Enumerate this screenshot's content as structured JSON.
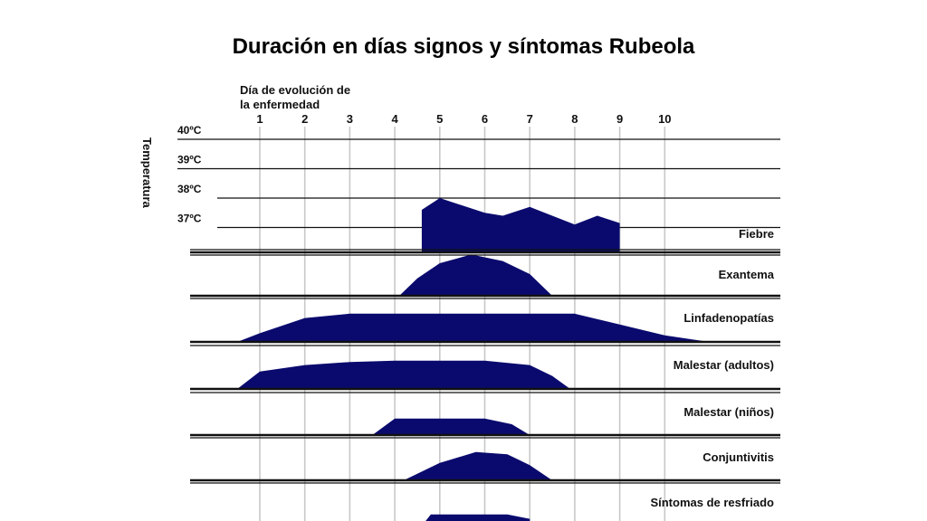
{
  "slide_title": "Duración en días signos y síntomas Rubeola",
  "chart_data": {
    "type": "area",
    "title": "Duración en días signos y síntomas Rubeola",
    "xlabel": "Día de evolución de la enfermedad",
    "xlabel_lines": [
      "Día de evolución de",
      "la enfermedad"
    ],
    "x_ticks": [
      "1",
      "2",
      "3",
      "4",
      "5",
      "6",
      "7",
      "8",
      "9",
      "10"
    ],
    "ylabel": "Temperatura",
    "temperature_ticks": [
      "40ºC",
      "39ºC",
      "38ºC",
      "37ºC"
    ],
    "temperature_values": [
      40,
      39,
      38,
      37
    ],
    "fill_color": "#0a0a6e",
    "series": [
      {
        "name": "Fiebre",
        "unit": "ºC",
        "points": [
          [
            4.6,
            35.9
          ],
          [
            4.6,
            37.6
          ],
          [
            5.0,
            38.0
          ],
          [
            5.5,
            37.75
          ],
          [
            6.0,
            37.5
          ],
          [
            6.4,
            37.4
          ],
          [
            7.0,
            37.7
          ],
          [
            7.5,
            37.4
          ],
          [
            8.0,
            37.1
          ],
          [
            8.5,
            37.4
          ],
          [
            9.0,
            37.15
          ],
          [
            9.0,
            35.9
          ]
        ]
      },
      {
        "name": "Exantema",
        "unit": "intensity",
        "points": [
          [
            4.1,
            0.0
          ],
          [
            4.5,
            0.4
          ],
          [
            5.0,
            0.75
          ],
          [
            5.7,
            0.95
          ],
          [
            6.4,
            0.8
          ],
          [
            7.0,
            0.5
          ],
          [
            7.5,
            0.0
          ]
        ]
      },
      {
        "name": "Linfadenopatías",
        "unit": "intensity",
        "points": [
          [
            0.5,
            0.0
          ],
          [
            1.0,
            0.2
          ],
          [
            2.0,
            0.55
          ],
          [
            3.0,
            0.65
          ],
          [
            4.0,
            0.65
          ],
          [
            5.0,
            0.65
          ],
          [
            6.0,
            0.65
          ],
          [
            7.0,
            0.65
          ],
          [
            8.0,
            0.65
          ],
          [
            9.0,
            0.4
          ],
          [
            10.0,
            0.15
          ],
          [
            11.0,
            0.0
          ]
        ]
      },
      {
        "name": "Malestar (adultos)",
        "unit": "intensity",
        "points": [
          [
            0.5,
            0.0
          ],
          [
            1.0,
            0.4
          ],
          [
            2.0,
            0.55
          ],
          [
            3.0,
            0.62
          ],
          [
            4.0,
            0.65
          ],
          [
            5.0,
            0.65
          ],
          [
            6.0,
            0.65
          ],
          [
            7.0,
            0.55
          ],
          [
            7.5,
            0.3
          ],
          [
            7.9,
            0.0
          ]
        ]
      },
      {
        "name": "Malestar (niños)",
        "unit": "intensity",
        "points": [
          [
            3.5,
            0.0
          ],
          [
            4.0,
            0.38
          ],
          [
            5.0,
            0.38
          ],
          [
            6.0,
            0.38
          ],
          [
            6.6,
            0.25
          ],
          [
            7.0,
            0.0
          ]
        ]
      },
      {
        "name": "Conjuntivitis",
        "unit": "intensity",
        "points": [
          [
            4.2,
            0.0
          ],
          [
            5.0,
            0.4
          ],
          [
            5.8,
            0.65
          ],
          [
            6.5,
            0.6
          ],
          [
            7.0,
            0.35
          ],
          [
            7.5,
            0.0
          ]
        ]
      },
      {
        "name": "Síntomas de resfriado",
        "unit": "intensity",
        "points": [
          [
            4.3,
            0.0
          ],
          [
            4.8,
            0.65
          ],
          [
            5.5,
            0.65
          ],
          [
            6.5,
            0.65
          ],
          [
            7.0,
            0.55
          ]
        ]
      }
    ]
  }
}
